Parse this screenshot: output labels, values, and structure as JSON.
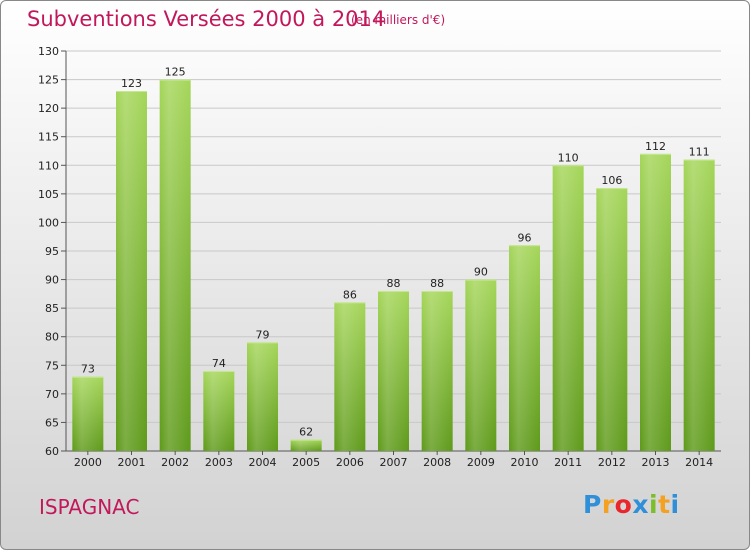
{
  "title": "Subventions Versées 2000 à 2014",
  "subtitle": "(en milliers d'€)",
  "commune": "ISPAGNAC",
  "logo": {
    "letters": [
      "P",
      "r",
      "o",
      "x",
      "i",
      "t",
      "i"
    ],
    "colors": [
      "#2f8fd8",
      "#f4a020",
      "#e8262c",
      "#2f8fd8",
      "#7bbd2a",
      "#f4a020",
      "#2f8fd8"
    ]
  },
  "colors": {
    "bar_top": "#a5d65a",
    "bar_bottom": "#5e9a1a",
    "title": "#c2185b"
  },
  "chart_data": {
    "type": "bar",
    "categories": [
      "2000",
      "2001",
      "2002",
      "2003",
      "2004",
      "2005",
      "2006",
      "2007",
      "2008",
      "2009",
      "2010",
      "2011",
      "2012",
      "2013",
      "2014"
    ],
    "values": [
      73,
      123,
      125,
      74,
      79,
      62,
      86,
      88,
      88,
      90,
      96,
      110,
      106,
      112,
      111
    ],
    "data_labels": [
      "73",
      "123",
      "125",
      "74",
      "79",
      "62",
      "86",
      "88",
      "88",
      "90",
      "96",
      "110",
      "106",
      "112",
      "111"
    ],
    "ylim": [
      60,
      130
    ],
    "yticks": [
      60,
      65,
      70,
      75,
      80,
      85,
      90,
      95,
      100,
      105,
      110,
      115,
      120,
      125,
      130
    ],
    "grid": true
  }
}
